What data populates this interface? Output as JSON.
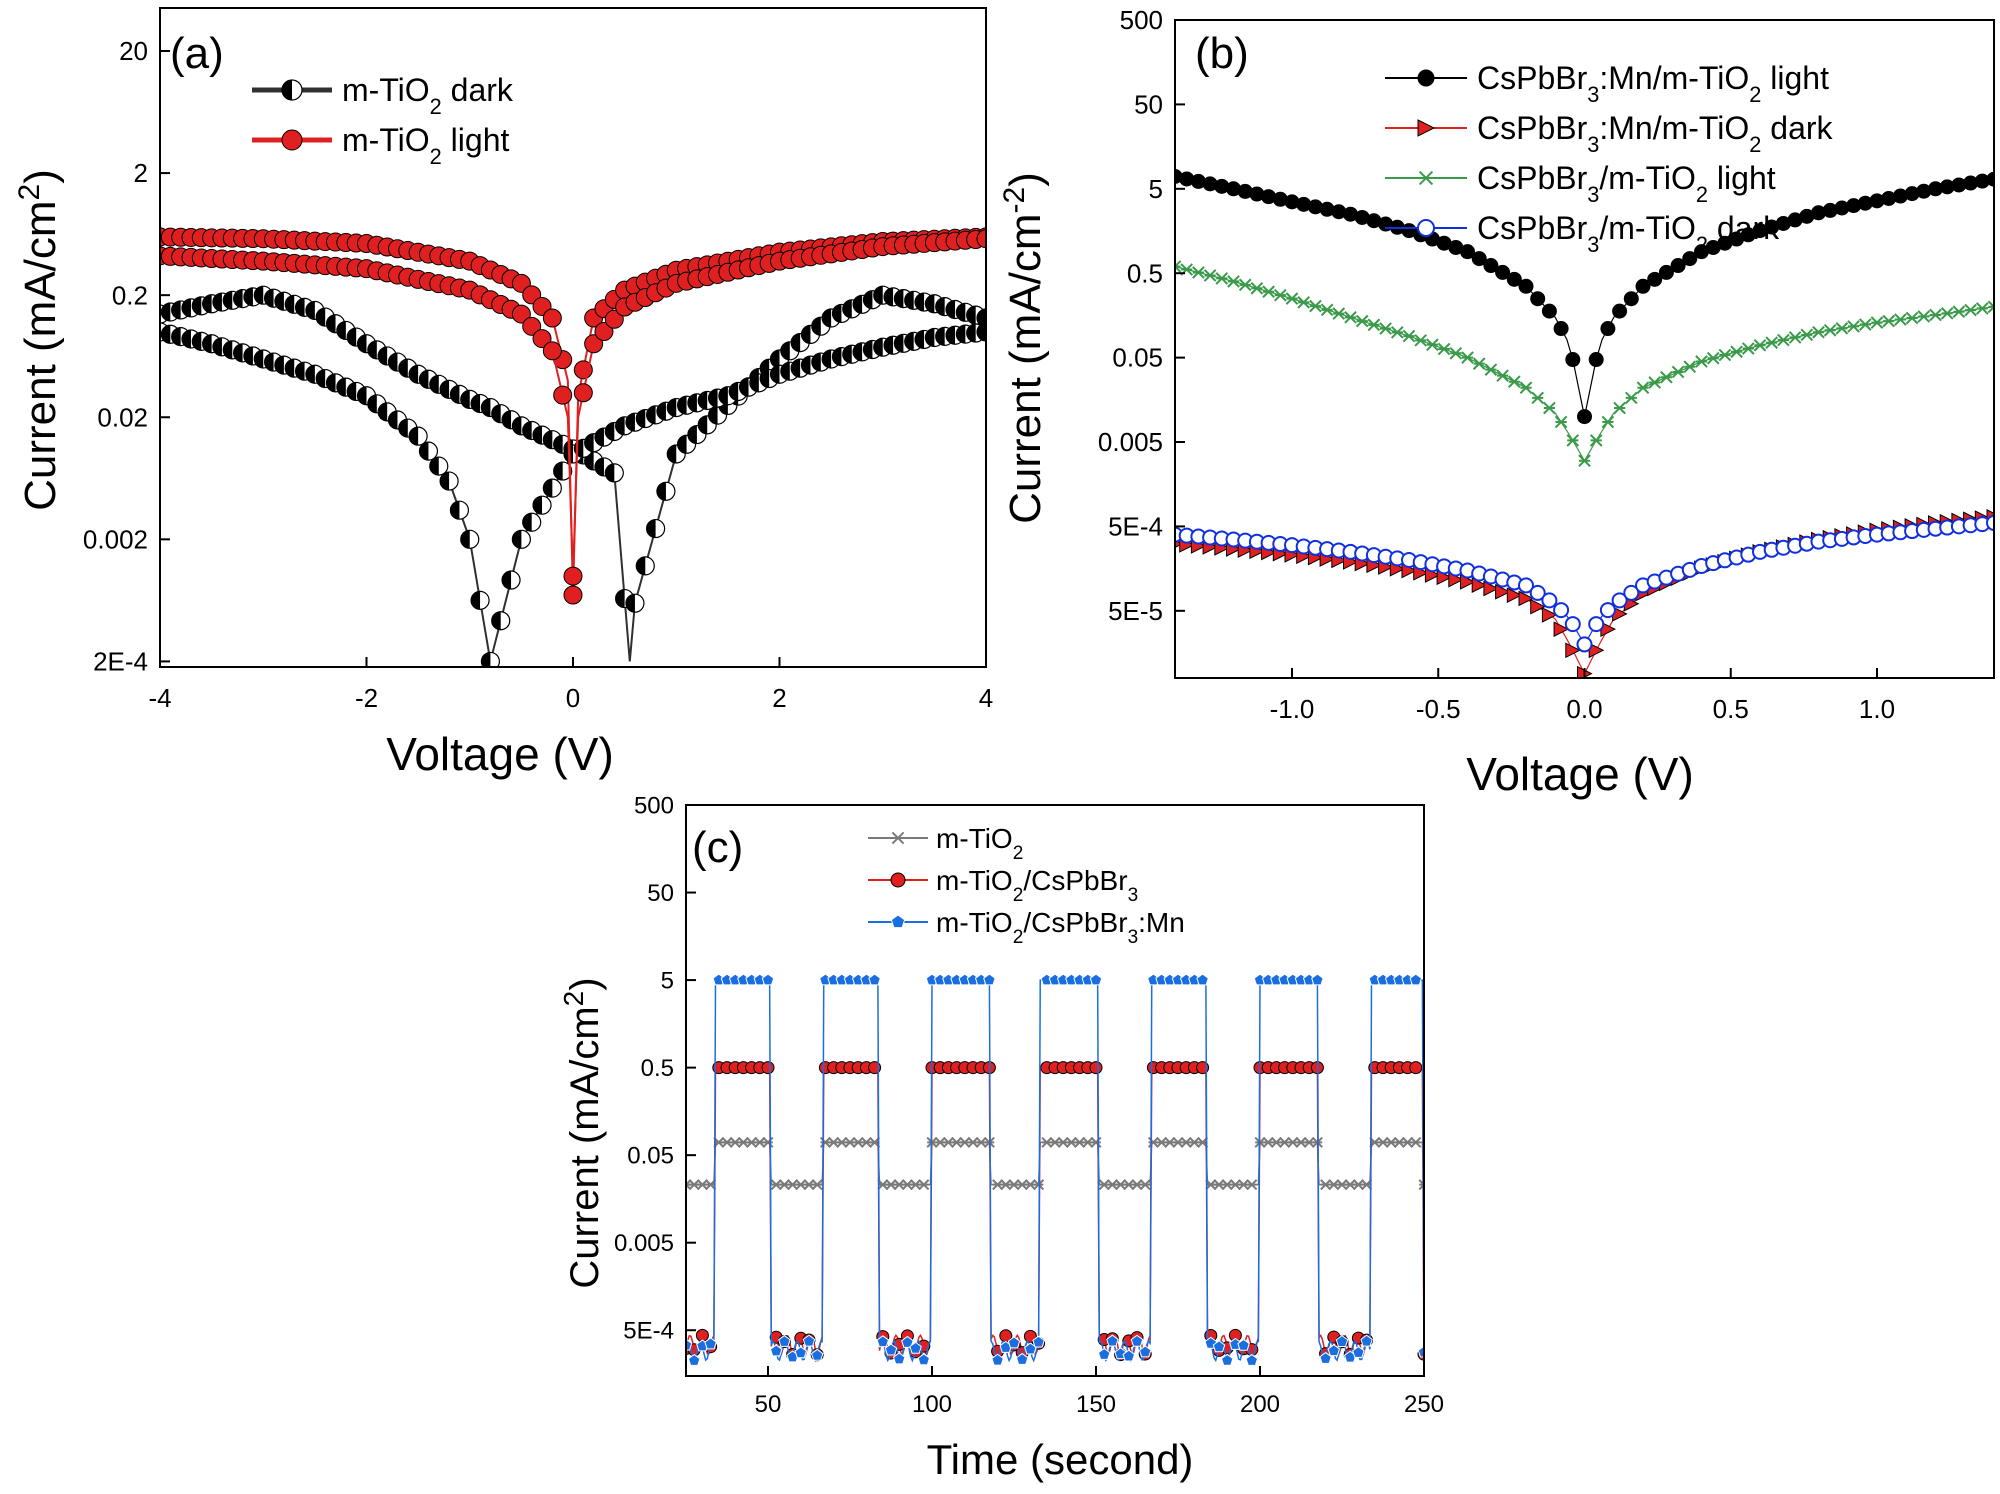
{
  "chart_data": [
    {
      "panel": "(a)",
      "type": "line",
      "xlabel": "Voltage (V)",
      "ylabel": "Current (mA/cm2)",
      "yscale": "log",
      "xlim": [
        -4,
        4
      ],
      "ylim": [
        0.00018,
        45
      ],
      "xticks": [
        -4,
        -2,
        0,
        2,
        4
      ],
      "xtick_labels": [
        "-4",
        "-2",
        "0",
        "2",
        "4"
      ],
      "yticks": [
        0.0002,
        0.002,
        0.02,
        0.2,
        2,
        20
      ],
      "ytick_labels": [
        "2E-4",
        "0.002",
        "0.02",
        "0.2",
        "2",
        "20"
      ],
      "legend": [
        {
          "pre": "m-TiO",
          "sub": "2",
          "post": " dark",
          "color": "#303030",
          "marker": "half-circle"
        },
        {
          "pre": "m-TiO",
          "sub": "2",
          "post": " light",
          "color": "#e02020",
          "marker": "circle"
        }
      ],
      "series": [
        {
          "name": "m-TiO2 dark (forward)",
          "color": "#303030",
          "marker": "half-circle",
          "x": [
            -4,
            -3.5,
            -3,
            -2.5,
            -2,
            -1.5,
            -1,
            -0.8,
            -0.5,
            0,
            0.4,
            0.55,
            0.6,
            1,
            1.5,
            2,
            2.5,
            3,
            3.5,
            4
          ],
          "y": [
            0.14,
            0.17,
            0.2,
            0.15,
            0.08,
            0.045,
            0.028,
            0.024,
            0.017,
            0.011,
            0.007,
            0.0002,
            0.0006,
            0.01,
            0.025,
            0.06,
            0.13,
            0.2,
            0.17,
            0.13
          ]
        },
        {
          "name": "m-TiO2 dark (reverse)",
          "color": "#303030",
          "marker": "half-circle",
          "x": [
            -4,
            -3.5,
            -3,
            -2.5,
            -2,
            -1.5,
            -1.2,
            -1,
            -0.8,
            -0.5,
            0,
            0.5,
            1,
            1.5,
            2,
            2.5,
            3,
            3.5,
            4
          ],
          "y": [
            0.1,
            0.08,
            0.06,
            0.045,
            0.03,
            0.014,
            0.006,
            0.002,
            0.0002,
            0.002,
            0.01,
            0.017,
            0.024,
            0.03,
            0.045,
            0.06,
            0.075,
            0.09,
            0.1
          ]
        },
        {
          "name": "m-TiO2 light (forward)",
          "color": "#e02020",
          "marker": "circle",
          "x": [
            -4,
            -3,
            -2,
            -1,
            -0.5,
            -0.2,
            -0.05,
            0,
            0.05,
            0.2,
            0.5,
            1,
            2,
            3,
            4
          ],
          "y": [
            0.6,
            0.58,
            0.53,
            0.38,
            0.25,
            0.13,
            0.04,
            0.0007,
            0.03,
            0.13,
            0.22,
            0.32,
            0.45,
            0.55,
            0.6
          ]
        },
        {
          "name": "m-TiO2 light (reverse)",
          "color": "#e02020",
          "marker": "circle",
          "x": [
            -4,
            -3,
            -2,
            -1,
            -0.5,
            -0.2,
            -0.05,
            0,
            0.05,
            0.2,
            0.5,
            1,
            2,
            3,
            4
          ],
          "y": [
            0.42,
            0.38,
            0.33,
            0.22,
            0.14,
            0.07,
            0.02,
            0.001,
            0.02,
            0.08,
            0.16,
            0.25,
            0.38,
            0.5,
            0.58
          ]
        }
      ]
    },
    {
      "panel": "(b)",
      "type": "line",
      "xlabel": "Voltage (V)",
      "ylabel": "Current (mA/cm-2)",
      "yscale": "log",
      "xlim": [
        -1.4,
        1.4
      ],
      "ylim": [
        8e-06,
        500
      ],
      "xticks": [
        -1.0,
        -0.5,
        0.0,
        0.5,
        1.0
      ],
      "xtick_labels": [
        "-1.0",
        "-0.5",
        "0.0",
        "0.5",
        "1.0"
      ],
      "yticks": [
        5e-05,
        0.0005,
        0.005,
        0.05,
        0.5,
        5,
        50,
        500
      ],
      "ytick_labels": [
        "5E-5",
        "5E-4",
        "0.005",
        "0.05",
        "0.5",
        "5",
        "50",
        "500"
      ],
      "legend": [
        {
          "pre": "CsPbBr",
          "sub": "3",
          "mid": ":Mn/m-TiO",
          "sub2": "2",
          "post": " light",
          "color": "#000000",
          "marker": "circle"
        },
        {
          "pre": "CsPbBr",
          "sub": "3",
          "mid": ":Mn/m-TiO",
          "sub2": "2",
          "post": " dark",
          "color": "#e02020",
          "marker": "triangle-right"
        },
        {
          "pre": "CsPbBr",
          "sub": "3",
          "mid": "/m-TiO",
          "sub2": "2",
          "post": " light",
          "color": "#3a9a4a",
          "marker": "star"
        },
        {
          "pre": "CsPbBr",
          "sub": "3",
          "mid": "/m-TiO",
          "sub2": "2",
          "post": " dark",
          "color": "#1030e0",
          "marker": "circle-open"
        }
      ],
      "series": [
        {
          "name": "CsPbBr3:Mn/m-TiO2 light",
          "color": "#000000",
          "marker": "circle",
          "x": [
            -1.4,
            -1.2,
            -1.0,
            -0.8,
            -0.6,
            -0.4,
            -0.2,
            -0.1,
            -0.05,
            0,
            0.05,
            0.1,
            0.2,
            0.4,
            0.6,
            0.8,
            1.0,
            1.2,
            1.4
          ],
          "y": [
            7,
            5,
            3.5,
            2.5,
            1.6,
            0.9,
            0.35,
            0.15,
            0.07,
            0.01,
            0.07,
            0.15,
            0.35,
            0.9,
            1.6,
            2.6,
            3.6,
            5,
            6.5
          ]
        },
        {
          "name": "CsPbBr3:Mn/m-TiO2 dark",
          "color": "#e02020",
          "marker": "triangle-right",
          "x": [
            -1.4,
            -1.2,
            -1.0,
            -0.8,
            -0.6,
            -0.4,
            -0.2,
            -0.1,
            -0.05,
            0,
            0.05,
            0.1,
            0.2,
            0.4,
            0.6,
            0.8,
            1.0,
            1.2,
            1.4
          ],
          "y": [
            0.00031,
            0.00027,
            0.00023,
            0.00019,
            0.00015,
            0.00011,
            7e-05,
            4e-05,
            2e-05,
            9e-06,
            2e-05,
            4e-05,
            8e-05,
            0.00016,
            0.00025,
            0.00035,
            0.00045,
            0.00055,
            0.00065
          ]
        },
        {
          "name": "CsPbBr3/m-TiO2 light",
          "color": "#3a9a4a",
          "marker": "star",
          "x": [
            -1.4,
            -1.2,
            -1.0,
            -0.8,
            -0.6,
            -0.4,
            -0.2,
            -0.1,
            -0.05,
            0,
            0.05,
            0.1,
            0.2,
            0.4,
            0.6,
            0.8,
            1.0,
            1.2,
            1.4
          ],
          "y": [
            0.6,
            0.4,
            0.25,
            0.15,
            0.09,
            0.05,
            0.022,
            0.011,
            0.006,
            0.003,
            0.006,
            0.011,
            0.022,
            0.045,
            0.07,
            0.1,
            0.13,
            0.16,
            0.2
          ]
        },
        {
          "name": "CsPbBr3/m-TiO2 dark",
          "color": "#1030e0",
          "marker": "circle-open",
          "x": [
            -1.4,
            -1.2,
            -1.0,
            -0.8,
            -0.6,
            -0.4,
            -0.2,
            -0.1,
            -0.05,
            0,
            0.05,
            0.1,
            0.2,
            0.4,
            0.6,
            0.8,
            1.0,
            1.2,
            1.4
          ],
          "y": [
            0.0004,
            0.00035,
            0.0003,
            0.00025,
            0.0002,
            0.00015,
            0.0001,
            6e-05,
            4e-05,
            2e-05,
            4e-05,
            6e-05,
            0.0001,
            0.00017,
            0.00025,
            0.00033,
            0.0004,
            0.00047,
            0.00055
          ]
        }
      ]
    },
    {
      "panel": "(c)",
      "type": "line",
      "xlabel": "Time (second)",
      "ylabel": "Current (mA/cm2)",
      "yscale": "log",
      "xlim": [
        25,
        250
      ],
      "ylim": [
        0.00015,
        500
      ],
      "xticks": [
        50,
        100,
        150,
        200,
        250
      ],
      "xtick_labels": [
        "50",
        "100",
        "150",
        "200",
        "250"
      ],
      "yticks": [
        0.0005,
        0.005,
        0.05,
        0.5,
        5,
        50,
        500
      ],
      "ytick_labels": [
        "5E-4",
        "0.005",
        "0.05",
        "0.5",
        "5",
        "50",
        "500"
      ],
      "legend": [
        {
          "pre": "m-TiO",
          "sub": "2",
          "post": "",
          "color": "#7a7a7a",
          "marker": "star"
        },
        {
          "pre": "m-TiO",
          "sub": "2",
          "mid": "/CsPbBr",
          "sub2": "3",
          "post": "",
          "color": "#e02020",
          "marker": "circle"
        },
        {
          "pre": "m-TiO",
          "sub": "2",
          "mid": "/CsPbBr",
          "sub2": "3",
          "post": ":Mn",
          "color": "#1a6ee0",
          "marker": "pentagon"
        }
      ],
      "on_intervals": [
        [
          34,
          51
        ],
        [
          67,
          84
        ],
        [
          100,
          118
        ],
        [
          133,
          151
        ],
        [
          167,
          184
        ],
        [
          200,
          218
        ],
        [
          234,
          250
        ]
      ],
      "series": [
        {
          "name": "m-TiO2",
          "color": "#7a7a7a",
          "marker": "star",
          "on_value": 0.07,
          "off_value": 0.023
        },
        {
          "name": "m-TiO2/CsPbBr3",
          "color": "#e02020",
          "marker": "circle",
          "on_value": 0.5,
          "off_value": 0.00035
        },
        {
          "name": "m-TiO2/CsPbBr3:Mn",
          "color": "#1a6ee0",
          "marker": "pentagon",
          "on_value": 5,
          "off_value": 0.0003
        }
      ]
    }
  ]
}
